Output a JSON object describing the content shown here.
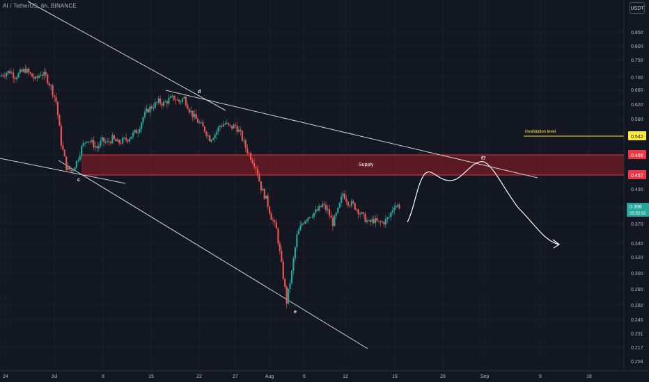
{
  "header": {
    "symbol_line": "AI / TetherUS, 6h, BINANCE",
    "currency_button": "USDT"
  },
  "colors": {
    "background": "#131722",
    "axis_text": "#b2b5be",
    "bull": "#26a69a",
    "bear": "#ef5350",
    "trendline": "#d1d4dc",
    "supply_zone": "#8b1a24",
    "zone_border": "#f23645",
    "invalidation": "#ffeb3b",
    "current_price": "#26a69a"
  },
  "price_axis": {
    "labels": [
      "0.850",
      "0.800",
      "0.750",
      "0.700",
      "0.660",
      "0.620",
      "0.580",
      "0.540",
      "0.499",
      "0.457",
      "0.430",
      "0.400",
      "0.398",
      "0.370",
      "0.340",
      "0.320",
      "0.300",
      "0.280",
      "0.260",
      "0.245",
      "0.231",
      "0.217",
      "0.204"
    ]
  },
  "time_axis": {
    "labels": [
      "24",
      "Jul",
      "8",
      "15",
      "22",
      "27",
      "Aug",
      "6",
      "12",
      "19",
      "26",
      "Sep",
      "9",
      "16"
    ]
  },
  "price_tags": {
    "invalidation": "0.542",
    "zone_top": "0.499",
    "zone_bottom": "0.457",
    "last_price": "0.398",
    "countdown": "05:50:53"
  },
  "annotations": {
    "supply": "Supply",
    "invalidation": "invalidation level",
    "wave_c": "c",
    "wave_d": "d",
    "wave_e": "e",
    "wave_f": "f?"
  },
  "chart_data": {
    "type": "candlestick",
    "timeframe": "6h",
    "pair": "AI / TetherUS",
    "exchange": "BINANCE",
    "x": [
      "24",
      "Jul",
      "8",
      "15",
      "22",
      "27",
      "Aug",
      "6",
      "12",
      "19",
      "26",
      "Sep",
      "9",
      "16"
    ],
    "price_scale": "log",
    "ylim": [
      0.2,
      0.9
    ],
    "close_path": [
      0.69,
      0.7,
      0.705,
      0.69,
      0.7,
      0.71,
      0.695,
      0.68,
      0.7,
      0.69,
      0.66,
      0.62,
      0.52,
      0.47,
      0.462,
      0.48,
      0.51,
      0.53,
      0.52,
      0.51,
      0.525,
      0.52,
      0.53,
      0.52,
      0.525,
      0.53,
      0.54,
      0.55,
      0.58,
      0.6,
      0.61,
      0.62,
      0.615,
      0.625,
      0.63,
      0.62,
      0.63,
      0.6,
      0.58,
      0.565,
      0.55,
      0.53,
      0.54,
      0.56,
      0.565,
      0.555,
      0.56,
      0.54,
      0.51,
      0.49,
      0.47,
      0.43,
      0.41,
      0.38,
      0.36,
      0.31,
      0.265,
      0.3,
      0.35,
      0.37,
      0.38,
      0.385,
      0.39,
      0.4,
      0.39,
      0.37,
      0.39,
      0.42,
      0.405,
      0.4,
      0.39,
      0.38,
      0.37,
      0.375,
      0.37,
      0.372,
      0.38,
      0.4,
      0.398
    ],
    "levels": [
      {
        "name": "invalidation level",
        "price": 0.542
      },
      {
        "name": "Supply zone top",
        "price": 0.499
      },
      {
        "name": "Supply zone bottom",
        "price": 0.457
      }
    ],
    "last_price": 0.398,
    "wave_labels": [
      "c",
      "d",
      "e",
      "f?"
    ]
  }
}
